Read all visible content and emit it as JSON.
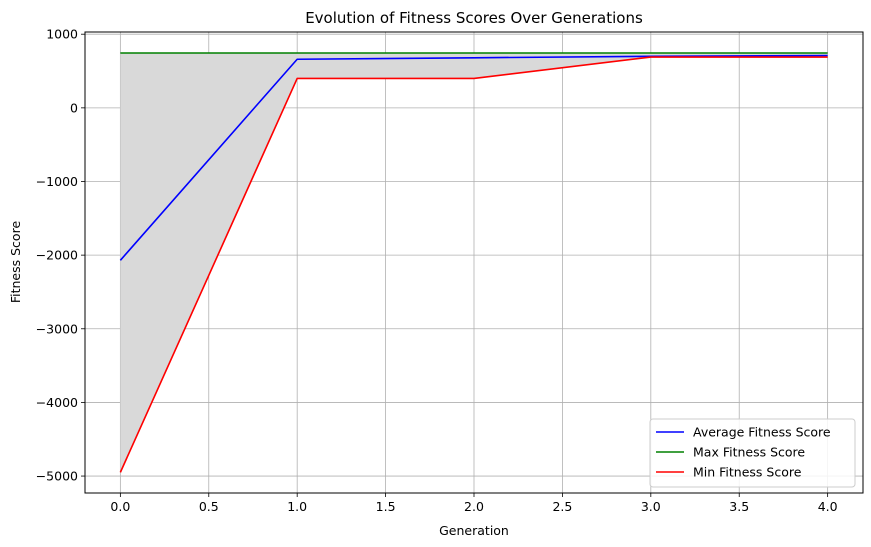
{
  "chart_data": {
    "type": "line",
    "title": "Evolution of Fitness Scores Over Generations",
    "xlabel": "Generation",
    "ylabel": "Fitness Score",
    "x": [
      0,
      1,
      2,
      3,
      4
    ],
    "xlim": [
      -0.2,
      4.2
    ],
    "ylim": [
      -5230,
      1030
    ],
    "xticks": [
      0.0,
      0.5,
      1.0,
      1.5,
      2.0,
      2.5,
      3.0,
      3.5,
      4.0
    ],
    "xtick_labels": [
      "0.0",
      "0.5",
      "1.0",
      "1.5",
      "2.0",
      "2.5",
      "3.0",
      "3.5",
      "4.0"
    ],
    "yticks": [
      1000,
      0,
      -1000,
      -2000,
      -3000,
      -4000,
      -5000
    ],
    "ytick_labels": [
      "1000",
      "0",
      "−1000",
      "−2000",
      "−3000",
      "−4000",
      "−5000"
    ],
    "grid": true,
    "legend_position": "lower-right",
    "fill_between": {
      "lower": "Min Fitness Score",
      "upper": "Max Fitness Score",
      "color": "#d9d9d9"
    },
    "series": [
      {
        "name": "Average Fitness Score",
        "color": "#0000ff",
        "values": [
          -2070,
          660,
          680,
          700,
          710
        ]
      },
      {
        "name": "Max Fitness Score",
        "color": "#008000",
        "values": [
          745,
          745,
          745,
          745,
          745
        ]
      },
      {
        "name": "Min Fitness Score",
        "color": "#ff0000",
        "values": [
          -4950,
          400,
          400,
          690,
          690
        ]
      }
    ]
  }
}
